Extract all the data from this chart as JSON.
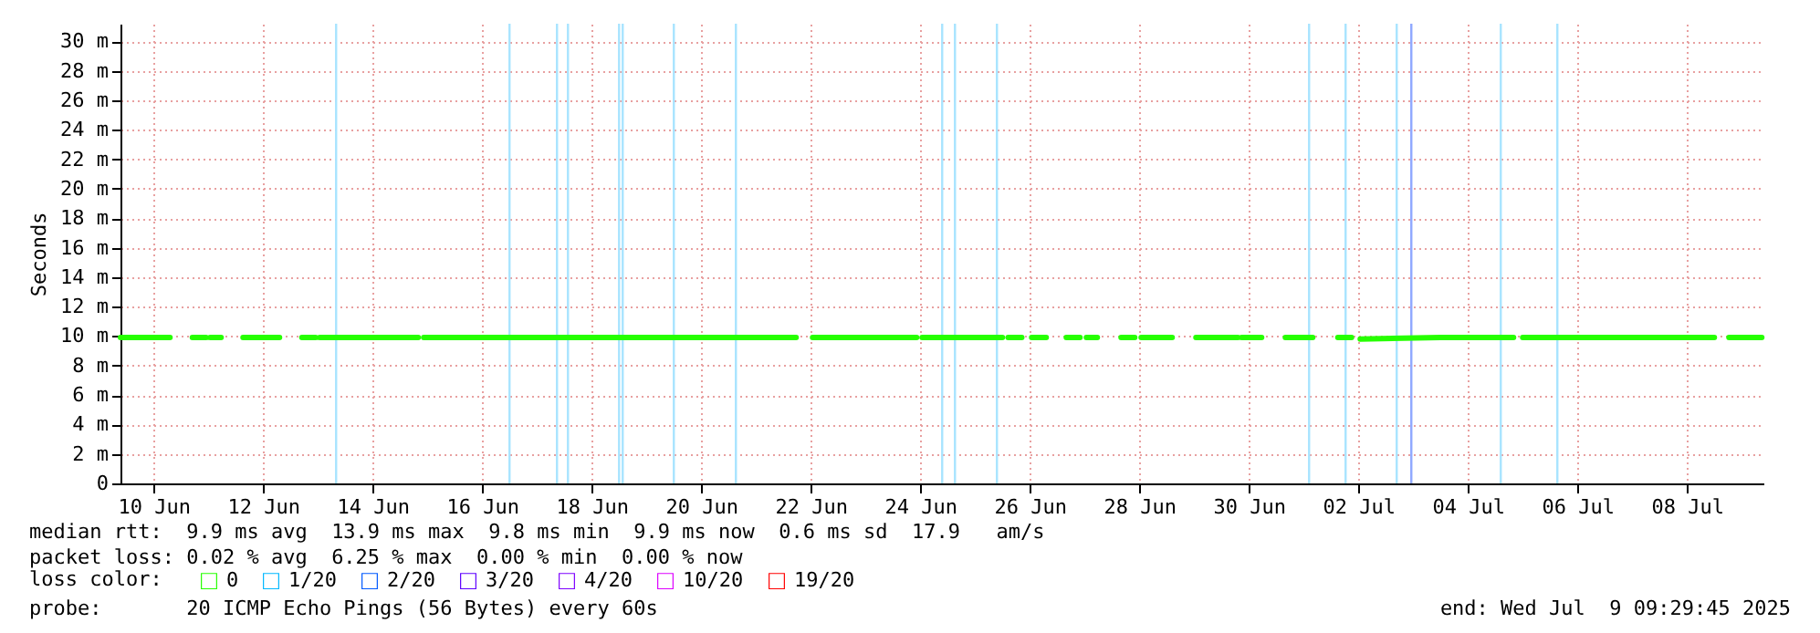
{
  "chart_data": {
    "type": "line",
    "ylabel": "Seconds",
    "legend_title": "loss color:",
    "legend": "bottom",
    "grid": true,
    "marker": "none",
    "line_style": "solid",
    "xlim": [
      "2025-06-09T09:30",
      "2025-07-09T09:30"
    ],
    "xticks": [
      {
        "value": "2025-06-10",
        "label": "10 Jun"
      },
      {
        "value": "2025-06-12",
        "label": "12 Jun"
      },
      {
        "value": "2025-06-14",
        "label": "14 Jun"
      },
      {
        "value": "2025-06-16",
        "label": "16 Jun"
      },
      {
        "value": "2025-06-18",
        "label": "18 Jun"
      },
      {
        "value": "2025-06-20",
        "label": "20 Jun"
      },
      {
        "value": "2025-06-22",
        "label": "22 Jun"
      },
      {
        "value": "2025-06-24",
        "label": "24 Jun"
      },
      {
        "value": "2025-06-26",
        "label": "26 Jun"
      },
      {
        "value": "2025-06-28",
        "label": "28 Jun"
      },
      {
        "value": "2025-06-30",
        "label": "30 Jun"
      },
      {
        "value": "2025-07-02",
        "label": "02 Jul"
      },
      {
        "value": "2025-07-04",
        "label": "04 Jul"
      },
      {
        "value": "2025-07-06",
        "label": "06 Jul"
      },
      {
        "value": "2025-07-08",
        "label": "08 Jul"
      }
    ],
    "ylim": [
      0,
      31.2
    ],
    "yticks": [
      0,
      {
        "value": 2,
        "label": "2 m"
      },
      {
        "value": 4,
        "label": "4 m"
      },
      {
        "value": 6,
        "label": "6 m"
      },
      {
        "value": 8,
        "label": "8 m"
      },
      {
        "value": 10,
        "label": "10 m"
      },
      {
        "value": 12,
        "label": "12 m"
      },
      {
        "value": 14,
        "label": "14 m"
      },
      {
        "value": 16,
        "label": "16 m"
      },
      {
        "value": 18,
        "label": "18 m"
      },
      {
        "value": 20,
        "label": "20 m"
      },
      {
        "value": 22,
        "label": "22 m"
      },
      {
        "value": 24,
        "label": "24 m"
      },
      {
        "value": 26,
        "label": "26 m"
      },
      {
        "value": 28,
        "label": "28 m"
      },
      {
        "value": 30,
        "label": "30 m"
      }
    ],
    "x": [
      "2025-06-09T09:30",
      "2025-06-10T07:12",
      "2025-06-10T14:00",
      "2025-06-10T17:00",
      "2025-06-10T23:00",
      "2025-06-10T23:36",
      "2025-06-11T00:48",
      "2025-06-11T05:36",
      "2025-06-11T10:24",
      "2025-06-11T15:12",
      "2025-06-12T07:12",
      "2025-06-12T13:36",
      "2025-06-12T17:00",
      "2025-06-12T23:00",
      "2025-06-12T23:40",
      "2025-06-13T00:48",
      "2025-06-14T20:00",
      "2025-06-14T21:12",
      "2025-06-14T22:24",
      "2025-06-18T12:00",
      "2025-06-21T17:36",
      "2025-06-21T21:12",
      "2025-06-22T00:48",
      "2025-06-23T22:24",
      "2025-06-23T23:36",
      "2025-06-24T00:48",
      "2025-06-25T12:00",
      "2025-06-25T14:00",
      "2025-06-25T14:30",
      "2025-06-25T20:30",
      "2025-06-25T21:36",
      "2025-06-26T00:48",
      "2025-06-26T07:12",
      "2025-06-26T12:48",
      "2025-06-26T16:00",
      "2025-06-26T22:00",
      "2025-06-26T22:24",
      "2025-06-27T00:48",
      "2025-06-27T05:36",
      "2025-06-27T12:00",
      "2025-06-27T16:00",
      "2025-06-27T22:00",
      "2025-06-27T22:24",
      "2025-06-28T00:48",
      "2025-06-28T14:24",
      "2025-06-28T19:36",
      "2025-06-29T00:48",
      "2025-06-29T19:12",
      "2025-06-29T20:00",
      "2025-06-29T20:48",
      "2025-06-30T05:36",
      "2025-06-30T10:48",
      "2025-06-30T16:00",
      "2025-07-01T04:00",
      "2025-07-01T10:48",
      "2025-07-01T15:00",
      "2025-07-01T21:00",
      "2025-07-01T21:36",
      "2025-07-02T00:48",
      "2025-07-03T12:00",
      "2025-07-04T20:00",
      "2025-07-04T22:00",
      "2025-07-05T00:00",
      "2025-07-08T12:00",
      "2025-07-08T15:12",
      "2025-07-08T18:24",
      "2025-07-09T08:48"
    ],
    "series": [
      {
        "name": "0",
        "color": "#26ff00",
        "values": [
          9.9,
          9.9,
          null,
          9.9,
          9.9,
          null,
          9.9,
          9.9,
          null,
          9.9,
          9.9,
          null,
          9.9,
          9.9,
          null,
          9.9,
          9.9,
          null,
          9.9,
          9.9,
          9.9,
          null,
          9.9,
          9.9,
          null,
          9.9,
          9.9,
          null,
          9.9,
          9.9,
          null,
          9.9,
          9.9,
          null,
          9.9,
          9.9,
          null,
          9.9,
          9.9,
          null,
          9.9,
          9.9,
          null,
          9.9,
          9.9,
          null,
          9.9,
          9.9,
          null,
          9.9,
          9.9,
          null,
          9.9,
          9.9,
          null,
          9.9,
          9.9,
          null,
          9.8,
          9.9,
          9.9,
          null,
          9.9,
          9.9,
          null,
          9.9,
          9.9
        ]
      },
      {
        "name": "1/20",
        "color": "#00b8ff",
        "values": [
          null,
          null,
          null,
          null,
          null,
          null,
          null,
          null,
          null,
          null,
          null,
          null,
          null,
          null,
          null,
          null,
          null,
          null,
          null,
          null,
          null,
          null,
          null,
          null,
          null,
          null,
          null,
          null,
          null,
          null,
          null,
          null,
          null,
          null,
          null,
          null,
          null,
          null,
          null,
          null,
          null,
          null,
          null,
          null,
          null,
          null,
          null,
          null,
          null,
          null,
          null,
          null,
          null,
          null,
          null,
          null,
          null,
          null,
          null,
          null,
          null,
          null,
          null,
          null,
          null,
          null,
          null
        ]
      },
      {
        "name": "2/20",
        "color": "#0059ff",
        "values": [
          null,
          null,
          null,
          null,
          null,
          null,
          null,
          null,
          null,
          null,
          null,
          null,
          null,
          null,
          null,
          null,
          null,
          null,
          null,
          null,
          null,
          null,
          null,
          null,
          null,
          null,
          null,
          null,
          null,
          null,
          null,
          null,
          null,
          null,
          null,
          null,
          null,
          null,
          null,
          null,
          null,
          null,
          null,
          null,
          null,
          null,
          null,
          null,
          null,
          null,
          null,
          null,
          null,
          null,
          null,
          null,
          null,
          null,
          null,
          null,
          null,
          null,
          null,
          null,
          null,
          null,
          null
        ]
      },
      {
        "name": "3/20",
        "color": "#5e00ff",
        "values": [
          null,
          null,
          null,
          null,
          null,
          null,
          null,
          null,
          null,
          null,
          null,
          null,
          null,
          null,
          null,
          null,
          null,
          null,
          null,
          null,
          null,
          null,
          null,
          null,
          null,
          null,
          null,
          null,
          null,
          null,
          null,
          null,
          null,
          null,
          null,
          null,
          null,
          null,
          null,
          null,
          null,
          null,
          null,
          null,
          null,
          null,
          null,
          null,
          null,
          null,
          null,
          null,
          null,
          null,
          null,
          null,
          null,
          null,
          null,
          null,
          null,
          null,
          null,
          null,
          null,
          null,
          null
        ]
      },
      {
        "name": "4/20",
        "color": "#7e00ff",
        "values": [
          null,
          null,
          null,
          null,
          null,
          null,
          null,
          null,
          null,
          null,
          null,
          null,
          null,
          null,
          null,
          null,
          null,
          null,
          null,
          null,
          null,
          null,
          null,
          null,
          null,
          null,
          null,
          null,
          null,
          null,
          null,
          null,
          null,
          null,
          null,
          null,
          null,
          null,
          null,
          null,
          null,
          null,
          null,
          null,
          null,
          null,
          null,
          null,
          null,
          null,
          null,
          null,
          null,
          null,
          null,
          null,
          null,
          null,
          null,
          null,
          null,
          null,
          null,
          null,
          null,
          null,
          null
        ]
      },
      {
        "name": "10/20",
        "color": "#dd00ff",
        "values": [
          null,
          null,
          null,
          null,
          null,
          null,
          null,
          null,
          null,
          null,
          null,
          null,
          null,
          null,
          null,
          null,
          null,
          null,
          null,
          null,
          null,
          null,
          null,
          null,
          null,
          null,
          null,
          null,
          null,
          null,
          null,
          null,
          null,
          null,
          null,
          null,
          null,
          null,
          null,
          null,
          null,
          null,
          null,
          null,
          null,
          null,
          null,
          null,
          null,
          null,
          null,
          null,
          null,
          null,
          null,
          null,
          null,
          null,
          null,
          null,
          null,
          null,
          null,
          null,
          null,
          null,
          null
        ]
      },
      {
        "name": "19/20",
        "color": "#ff0000",
        "values": [
          null,
          null,
          null,
          null,
          null,
          null,
          null,
          null,
          null,
          null,
          null,
          null,
          null,
          null,
          null,
          null,
          null,
          null,
          null,
          null,
          null,
          null,
          null,
          null,
          null,
          null,
          null,
          null,
          null,
          null,
          null,
          null,
          null,
          null,
          null,
          null,
          null,
          null,
          null,
          null,
          null,
          null,
          null,
          null,
          null,
          null,
          null,
          null,
          null,
          null,
          null,
          null,
          null,
          null,
          null,
          null,
          null,
          null,
          null,
          null,
          null,
          null,
          null,
          null,
          null,
          null,
          null
        ]
      }
    ],
    "ref_lines": [
      {
        "axis": "x",
        "value": "2025-06-13T08:00",
        "color": "#a8e4ff"
      },
      {
        "axis": "x",
        "value": "2025-06-16T12:00",
        "color": "#a8e4ff"
      },
      {
        "axis": "x",
        "value": "2025-06-17T08:48",
        "color": "#a8e4ff"
      },
      {
        "axis": "x",
        "value": "2025-06-17T13:36",
        "color": "#a8e4ff"
      },
      {
        "axis": "x",
        "value": "2025-06-18T12:00",
        "color": "#a8e4ff"
      },
      {
        "axis": "x",
        "value": "2025-06-18T13:36",
        "color": "#a8e4ff"
      },
      {
        "axis": "x",
        "value": "2025-06-19T12:00",
        "color": "#a8e4ff"
      },
      {
        "axis": "x",
        "value": "2025-06-20T15:12",
        "color": "#a8e4ff"
      },
      {
        "axis": "x",
        "value": "2025-06-24T09:36",
        "color": "#a8e4ff"
      },
      {
        "axis": "x",
        "value": "2025-06-24T15:12",
        "color": "#a8e4ff"
      },
      {
        "axis": "x",
        "value": "2025-06-25T09:36",
        "color": "#a8e4ff"
      },
      {
        "axis": "x",
        "value": "2025-07-01T02:24",
        "color": "#a8e4ff"
      },
      {
        "axis": "x",
        "value": "2025-07-01T18:24",
        "color": "#a8e4ff"
      },
      {
        "axis": "x",
        "value": "2025-07-02T16:48",
        "color": "#a8e4ff"
      },
      {
        "axis": "x",
        "value": "2025-07-02T23:12",
        "color": "#8fa8ff"
      },
      {
        "axis": "x",
        "value": "2025-07-04T14:24",
        "color": "#a8e4ff"
      },
      {
        "axis": "x",
        "value": "2025-07-05T15:12",
        "color": "#a8e4ff"
      }
    ],
    "annotations": [
      "median rtt:  9.9 ms avg  13.9 ms max  9.8 ms min  9.9 ms now  0.6 ms sd  17.9   am/s",
      "packet loss: 0.02 % avg  6.25 % max  0.00 % min  0.00 % now",
      "probe:       20 ICMP Echo Pings (56 Bytes) every 60s",
      "end: Wed Jul  9 09:29:45 2025"
    ]
  }
}
